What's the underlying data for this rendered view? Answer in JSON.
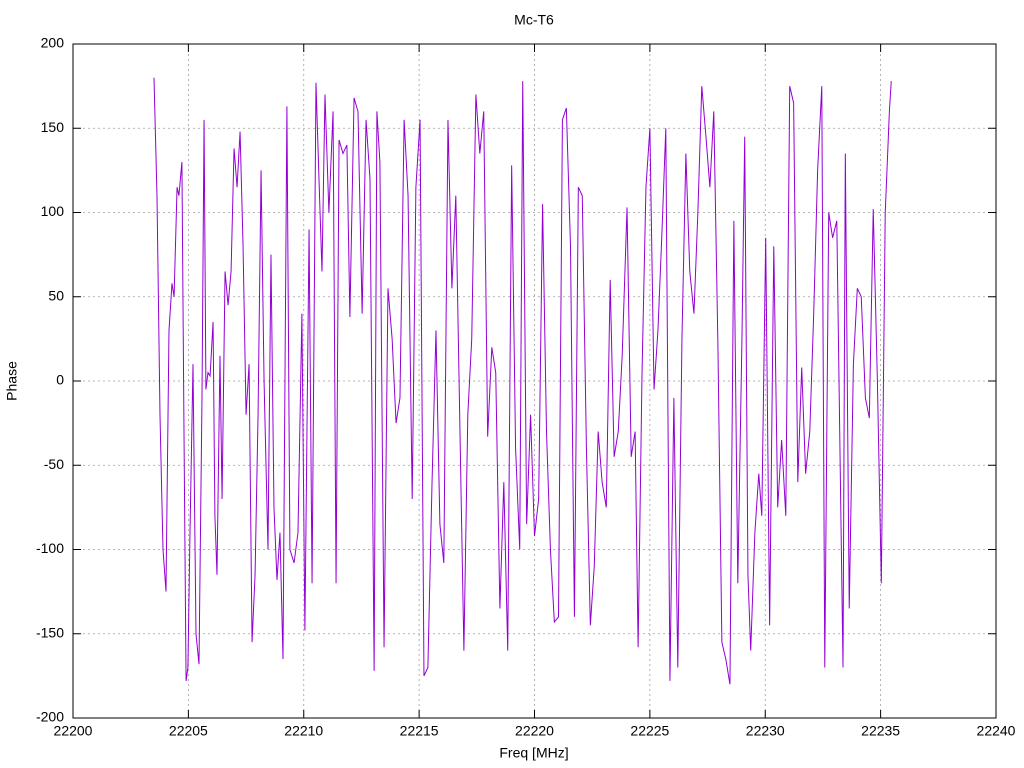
{
  "chart_data": {
    "type": "line",
    "title": "Mc-T6",
    "x_label": "Freq [MHz]",
    "y_label": "Phase",
    "xlim": [
      22200,
      22240
    ],
    "ylim": [
      -200,
      200
    ],
    "xticks": [
      22200,
      22205,
      22210,
      22215,
      22220,
      22225,
      22230,
      22235,
      22240
    ],
    "yticks": [
      -200,
      -150,
      -100,
      -50,
      0,
      50,
      100,
      150,
      200
    ],
    "grid": true,
    "x": [
      22203.51,
      22203.64,
      22203.77,
      22203.9,
      22204.03,
      22204.16,
      22204.29,
      22204.38,
      22204.51,
      22204.59,
      22204.72,
      22204.81,
      22204.9,
      22204.98,
      22205.07,
      22205.2,
      22205.33,
      22205.46,
      22205.59,
      22205.68,
      22205.76,
      22205.85,
      22205.94,
      22206.07,
      22206.15,
      22206.24,
      22206.37,
      22206.46,
      22206.59,
      22206.72,
      22206.85,
      22206.98,
      22207.11,
      22207.24,
      22207.37,
      22207.5,
      22207.63,
      22207.76,
      22207.89,
      22208.02,
      22208.15,
      22208.28,
      22208.45,
      22208.58,
      22208.71,
      22208.84,
      22208.97,
      22209.1,
      22209.27,
      22209.4,
      22209.58,
      22209.75,
      22209.92,
      22210.05,
      22210.23,
      22210.36,
      22210.53,
      22210.66,
      22210.79,
      22210.92,
      22211.09,
      22211.27,
      22211.4,
      22211.53,
      22211.7,
      22211.87,
      22212.0,
      22212.18,
      22212.35,
      22212.53,
      22212.7,
      22212.87,
      22213.05,
      22213.17,
      22213.3,
      22213.48,
      22213.65,
      22213.83,
      22214.0,
      22214.17,
      22214.35,
      22214.52,
      22214.7,
      22214.86,
      22215.04,
      22215.21,
      22215.38,
      22215.56,
      22215.73,
      22215.9,
      22216.07,
      22216.25,
      22216.42,
      22216.59,
      22216.77,
      22216.94,
      22217.11,
      22217.28,
      22217.46,
      22217.63,
      22217.8,
      22217.97,
      22218.15,
      22218.32,
      22218.5,
      22218.67,
      22218.84,
      22219.01,
      22219.18,
      22219.36,
      22219.49,
      22219.66,
      22219.83,
      22220.0,
      22220.18,
      22220.35,
      22220.52,
      22220.69,
      22220.86,
      22221.04,
      22221.21,
      22221.38,
      22221.56,
      22221.73,
      22221.9,
      22222.07,
      22222.25,
      22222.42,
      22222.59,
      22222.76,
      22222.93,
      22223.11,
      22223.28,
      22223.45,
      22223.63,
      22223.8,
      22224.01,
      22224.19,
      22224.36,
      22224.49,
      22224.66,
      22224.83,
      22225.0,
      22225.18,
      22225.35,
      22225.52,
      22225.69,
      22225.87,
      22226.04,
      22226.21,
      22226.39,
      22226.56,
      22226.73,
      22226.91,
      22227.08,
      22227.25,
      22227.43,
      22227.6,
      22227.77,
      22227.95,
      22228.12,
      22228.29,
      22228.47,
      22228.64,
      22228.81,
      22228.99,
      22229.11,
      22229.25,
      22229.37,
      22229.55,
      22229.72,
      22229.85,
      22230.02,
      22230.19,
      22230.37,
      22230.54,
      22230.71,
      22230.89,
      22231.06,
      22231.23,
      22231.41,
      22231.58,
      22231.75,
      22231.93,
      22232.1,
      22232.27,
      22232.45,
      22232.58,
      22232.75,
      22232.92,
      22233.1,
      22233.37,
      22233.47,
      22233.64,
      22233.82,
      22233.99,
      22234.16,
      22234.34,
      22234.51,
      22234.68,
      22234.86,
      22235.03,
      22235.2,
      22235.38,
      22235.46
    ],
    "series": [
      {
        "name": "Phase",
        "color": "#9400d3",
        "values": [
          180,
          110,
          -20,
          -100,
          -125,
          30,
          58,
          50,
          115,
          110,
          130,
          -30,
          -178,
          -170,
          -90,
          10,
          -150,
          -168,
          -10,
          155,
          -5,
          5,
          3,
          35,
          -80,
          -115,
          15,
          -70,
          65,
          45,
          65,
          138,
          115,
          148,
          80,
          -20,
          10,
          -155,
          -115,
          -20,
          125,
          0,
          -100,
          75,
          -75,
          -118,
          -90,
          -165,
          163,
          -100,
          -108,
          -90,
          40,
          -148,
          90,
          -120,
          177,
          120,
          65,
          170,
          100,
          160,
          -120,
          143,
          135,
          140,
          38,
          168,
          160,
          40,
          155,
          120,
          -172,
          160,
          130,
          -158,
          55,
          25,
          -25,
          -10,
          155,
          110,
          -70,
          115,
          155,
          -175,
          -170,
          -60,
          30,
          -85,
          -108,
          155,
          55,
          110,
          -30,
          -160,
          -20,
          25,
          170,
          135,
          160,
          -33,
          20,
          5,
          -135,
          -60,
          -160,
          128,
          -40,
          -100,
          178,
          -85,
          -20,
          -92,
          -70,
          105,
          -30,
          -100,
          -143,
          -140,
          155,
          162,
          80,
          -140,
          115,
          110,
          -40,
          -145,
          -110,
          -30,
          -60,
          -75,
          60,
          -45,
          -30,
          15,
          103,
          -45,
          -30,
          -158,
          5,
          115,
          150,
          -5,
          30,
          87,
          150,
          -178,
          -10,
          -170,
          25,
          135,
          65,
          40,
          100,
          175,
          145,
          115,
          160,
          20,
          -155,
          -165,
          -180,
          95,
          -120,
          25,
          145,
          -115,
          -160,
          -90,
          -55,
          -80,
          85,
          -145,
          80,
          -75,
          -35,
          -80,
          175,
          165,
          -60,
          8,
          -55,
          -30,
          40,
          125,
          175,
          -170,
          100,
          85,
          95,
          -170,
          135,
          -135,
          10,
          55,
          50,
          -10,
          -22,
          102,
          0,
          -120,
          100,
          160,
          178
        ]
      }
    ]
  }
}
